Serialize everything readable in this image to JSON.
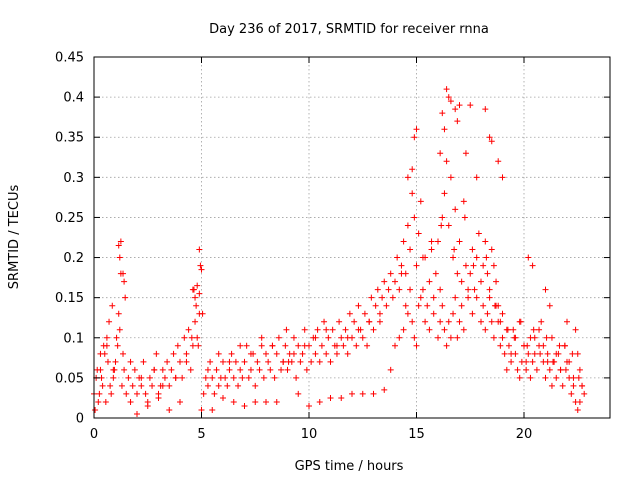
{
  "chart_data": {
    "type": "scatter",
    "title": "Day 236 of 2017, SRMTID for receiver rnna",
    "xlabel": "GPS time / hours",
    "ylabel": "SRMTID / TECUs",
    "xlim": [
      0,
      24
    ],
    "ylim": [
      0,
      0.45
    ],
    "xticks": [
      0,
      5,
      10,
      15,
      20
    ],
    "yticks": [
      0,
      0.05,
      0.1,
      0.15,
      0.2,
      0.25,
      0.3,
      0.35,
      0.4,
      0.45
    ],
    "xtick_labels": [
      "0",
      "5",
      "10",
      "15",
      "20"
    ],
    "ytick_labels": [
      "0",
      "0.05",
      "0.1",
      "0.15",
      "0.2",
      "0.25",
      "0.3",
      "0.35",
      "0.4",
      "0.45"
    ],
    "grid": true,
    "marker": "plus",
    "color": "#ff0000",
    "series": [
      {
        "name": "SRMTID",
        "x": [
          0.0,
          0.1,
          0.2,
          0.3,
          0.4,
          0.5,
          0.6,
          0.7,
          0.8,
          0.9,
          1.0,
          1.1,
          1.2,
          1.3,
          1.4,
          1.5,
          1.6,
          1.7,
          1.8,
          1.9,
          2.0,
          2.1,
          2.2,
          2.3,
          2.4,
          2.5,
          2.6,
          2.7,
          2.8,
          2.9,
          3.0,
          3.1,
          3.2,
          3.3,
          3.4,
          3.5,
          3.6,
          3.7,
          3.8,
          3.9,
          4.0,
          4.1,
          4.2,
          4.3,
          4.4,
          4.5,
          4.6,
          4.7,
          4.8,
          4.9,
          5.0,
          5.1,
          5.2,
          5.3,
          5.4,
          5.5,
          5.6,
          5.7,
          5.8,
          5.9,
          6.0,
          6.1,
          6.2,
          6.3,
          6.4,
          6.5,
          6.6,
          6.7,
          6.8,
          6.9,
          7.0,
          7.1,
          7.2,
          7.3,
          7.4,
          7.5,
          7.6,
          7.7,
          7.8,
          7.9,
          8.0,
          8.1,
          8.2,
          8.3,
          8.4,
          8.5,
          8.6,
          8.7,
          8.8,
          8.9,
          9.0,
          9.1,
          9.2,
          9.3,
          9.4,
          9.5,
          9.6,
          9.7,
          9.8,
          9.9,
          10.0,
          10.1,
          10.2,
          10.3,
          10.4,
          10.5,
          10.6,
          10.7,
          10.8,
          10.9,
          11.0,
          11.1,
          11.2,
          11.3,
          11.4,
          11.5,
          11.6,
          11.7,
          11.8,
          11.9,
          12.0,
          12.1,
          12.2,
          12.3,
          12.4,
          12.5,
          12.6,
          12.7,
          12.8,
          12.9,
          13.0,
          13.1,
          13.2,
          13.3,
          13.4,
          13.5,
          13.6,
          13.7,
          13.8,
          13.9,
          14.0,
          14.1,
          14.2,
          14.3,
          14.4,
          14.5,
          14.6,
          14.7,
          14.8,
          14.9,
          15.0,
          15.1,
          15.2,
          15.3,
          15.4,
          15.5,
          15.6,
          15.7,
          15.8,
          15.9,
          16.0,
          16.1,
          16.2,
          16.3,
          16.4,
          16.5,
          16.6,
          16.7,
          16.8,
          16.9,
          17.0,
          17.1,
          17.2,
          17.3,
          17.4,
          17.5,
          17.6,
          17.7,
          17.8,
          17.9,
          18.0,
          18.1,
          18.2,
          18.3,
          18.4,
          18.5,
          18.6,
          18.7,
          18.8,
          18.9,
          19.0,
          19.1,
          19.2,
          19.3,
          19.4,
          19.5,
          19.6,
          19.7,
          19.8,
          19.9,
          20.0,
          20.1,
          20.2,
          20.3,
          20.4,
          20.5,
          20.6,
          20.7,
          20.8,
          20.9,
          21.0,
          21.1,
          21.2,
          21.3,
          21.4,
          21.5,
          21.6,
          21.7,
          21.8,
          21.9,
          22.0,
          22.1,
          22.2,
          22.3,
          22.4,
          22.5,
          22.6,
          22.7,
          0.05,
          0.15,
          0.25,
          0.35,
          0.45,
          0.55,
          0.65,
          0.75,
          0.85,
          0.95,
          1.05,
          1.15,
          1.25,
          1.35,
          1.45,
          4.55,
          4.65,
          4.75,
          4.85,
          4.95,
          5.05,
          8.95,
          9.05,
          13.8,
          14.0,
          14.2,
          14.4,
          14.5,
          14.6,
          14.7,
          14.8,
          14.9,
          15.0,
          15.1,
          15.2,
          15.4,
          15.6,
          15.8,
          16.0,
          16.1,
          16.2,
          16.3,
          16.4,
          16.5,
          16.6,
          16.7,
          16.8,
          16.9,
          17.0,
          17.1,
          17.2,
          17.4,
          17.6,
          17.8,
          18.0,
          18.1,
          18.2,
          18.3,
          18.4,
          18.5,
          18.6,
          18.7,
          18.8,
          18.9,
          19.0,
          19.2,
          19.4,
          19.6,
          19.8,
          20.0,
          20.1,
          20.3,
          20.5,
          20.7,
          20.9,
          21.1,
          21.3,
          21.5,
          21.7,
          21.9,
          22.1,
          22.3,
          22.5,
          22.6,
          22.7,
          22.8,
          1.15,
          1.25,
          1.35,
          1.2,
          1.4,
          4.6,
          4.7,
          4.8,
          4.9,
          5.0,
          4.9,
          16.4,
          16.6,
          16.8,
          16.9,
          17.0,
          16.5,
          16.3,
          17.5,
          18.2,
          18.4,
          18.5,
          16.2,
          16.1,
          15.0,
          14.9,
          14.8,
          14.6,
          17.3,
          17.8,
          18.8,
          19.0,
          20.2,
          20.4,
          21.0,
          21.2,
          22.0,
          22.4,
          3.0,
          6.0,
          7.5,
          9.5,
          11.0,
          12.0,
          13.0,
          2.0,
          2.5,
          3.5,
          4.0,
          5.5,
          6.5,
          7.0,
          8.0,
          8.5,
          10.0,
          10.5,
          11.5,
          12.5,
          13.5,
          0.3,
          0.6,
          0.9,
          1.7,
          2.2,
          2.8,
          3.2,
          3.8,
          4.3,
          5.3,
          5.8,
          6.3,
          6.8,
          7.3,
          7.8,
          8.3,
          8.8,
          9.3,
          9.8,
          10.3,
          10.8,
          11.3,
          11.8,
          12.3,
          12.8,
          13.3,
          14.3,
          15.3,
          15.7,
          16.15,
          16.75,
          17.25,
          17.65,
          18.25,
          18.65,
          19.25,
          19.55,
          19.85,
          20.15,
          20.45,
          20.75,
          21.05,
          21.35,
          21.65,
          21.95,
          22.25,
          22.55
        ],
        "y": [
          0.03,
          0.05,
          0.02,
          0.06,
          0.04,
          0.08,
          0.1,
          0.12,
          0.03,
          0.05,
          0.07,
          0.09,
          0.11,
          0.04,
          0.06,
          0.03,
          0.05,
          0.02,
          0.04,
          0.06,
          0.03,
          0.05,
          0.04,
          0.07,
          0.03,
          0.02,
          0.05,
          0.04,
          0.06,
          0.08,
          0.03,
          0.04,
          0.06,
          0.05,
          0.07,
          0.04,
          0.06,
          0.08,
          0.05,
          0.09,
          0.07,
          0.05,
          0.1,
          0.08,
          0.11,
          0.06,
          0.09,
          0.12,
          0.1,
          0.13,
          0.01,
          0.03,
          0.05,
          0.04,
          0.07,
          0.05,
          0.03,
          0.06,
          0.04,
          0.05,
          0.07,
          0.05,
          0.04,
          0.06,
          0.08,
          0.05,
          0.07,
          0.04,
          0.06,
          0.05,
          0.07,
          0.09,
          0.05,
          0.06,
          0.08,
          0.04,
          0.07,
          0.06,
          0.09,
          0.05,
          0.08,
          0.07,
          0.06,
          0.09,
          0.05,
          0.08,
          0.1,
          0.06,
          0.07,
          0.09,
          0.06,
          0.08,
          0.07,
          0.1,
          0.05,
          0.09,
          0.07,
          0.08,
          0.11,
          0.06,
          0.09,
          0.07,
          0.1,
          0.08,
          0.11,
          0.07,
          0.09,
          0.12,
          0.08,
          0.1,
          0.07,
          0.11,
          0.09,
          0.08,
          0.12,
          0.1,
          0.09,
          0.11,
          0.08,
          0.13,
          0.1,
          0.12,
          0.09,
          0.14,
          0.11,
          0.1,
          0.13,
          0.09,
          0.12,
          0.15,
          0.11,
          0.14,
          0.16,
          0.12,
          0.15,
          0.17,
          0.14,
          0.16,
          0.18,
          0.15,
          0.17,
          0.2,
          0.16,
          0.19,
          0.22,
          0.18,
          0.24,
          0.21,
          0.28,
          0.25,
          0.19,
          0.23,
          0.27,
          0.16,
          0.2,
          0.14,
          0.17,
          0.21,
          0.15,
          0.18,
          0.22,
          0.16,
          0.25,
          0.28,
          0.32,
          0.24,
          0.3,
          0.2,
          0.26,
          0.18,
          0.22,
          0.17,
          0.27,
          0.19,
          0.15,
          0.18,
          0.21,
          0.16,
          0.2,
          0.23,
          0.17,
          0.19,
          0.22,
          0.18,
          0.16,
          0.21,
          0.19,
          0.17,
          0.14,
          0.12,
          0.1,
          0.08,
          0.06,
          0.09,
          0.07,
          0.11,
          0.08,
          0.06,
          0.05,
          0.07,
          0.09,
          0.06,
          0.08,
          0.05,
          0.07,
          0.1,
          0.06,
          0.09,
          0.12,
          0.07,
          0.05,
          0.08,
          0.06,
          0.04,
          0.07,
          0.05,
          0.08,
          0.06,
          0.04,
          0.09,
          0.07,
          0.05,
          0.03,
          0.04,
          0.02,
          0.01,
          0.02,
          0.04,
          0.01,
          0.06,
          0.03,
          0.05,
          0.09,
          0.02,
          0.07,
          0.04,
          0.14,
          0.06,
          0.1,
          0.13,
          0.18,
          0.08,
          0.15,
          0.1,
          0.16,
          0.14,
          0.09,
          0.19,
          0.13,
          0.11,
          0.07,
          0.06,
          0.09,
          0.1,
          0.11,
          0.14,
          0.13,
          0.16,
          0.12,
          0.1,
          0.09,
          0.14,
          0.15,
          0.12,
          0.11,
          0.13,
          0.1,
          0.12,
          0.14,
          0.11,
          0.09,
          0.12,
          0.1,
          0.13,
          0.15,
          0.1,
          0.12,
          0.14,
          0.11,
          0.16,
          0.13,
          0.15,
          0.12,
          0.14,
          0.11,
          0.13,
          0.15,
          0.12,
          0.1,
          0.14,
          0.12,
          0.09,
          0.13,
          0.11,
          0.08,
          0.1,
          0.12,
          0.09,
          0.07,
          0.1,
          0.08,
          0.11,
          0.09,
          0.07,
          0.1,
          0.08,
          0.06,
          0.09,
          0.07,
          0.05,
          0.08,
          0.06,
          0.04,
          0.03,
          0.215,
          0.22,
          0.18,
          0.2,
          0.17,
          0.16,
          0.15,
          0.165,
          0.155,
          0.185,
          0.21,
          0.41,
          0.395,
          0.385,
          0.37,
          0.39,
          0.4,
          0.36,
          0.39,
          0.385,
          0.35,
          0.345,
          0.38,
          0.33,
          0.36,
          0.35,
          0.31,
          0.3,
          0.33,
          0.3,
          0.32,
          0.3,
          0.2,
          0.19,
          0.16,
          0.14,
          0.12,
          0.11,
          0.025,
          0.025,
          0.02,
          0.03,
          0.025,
          0.03,
          0.03,
          0.005,
          0.015,
          0.01,
          0.02,
          0.01,
          0.02,
          0.015,
          0.02,
          0.02,
          0.015,
          0.02,
          0.025,
          0.03,
          0.035,
          0.08,
          0.09,
          0.06,
          0.07,
          0.05,
          0.06,
          0.04,
          0.05,
          0.07,
          0.06,
          0.08,
          0.07,
          0.09,
          0.08,
          0.1,
          0.09,
          0.07,
          0.08,
          0.09,
          0.1,
          0.11,
          0.09,
          0.1,
          0.11,
          0.12,
          0.13,
          0.18,
          0.2,
          0.22,
          0.24,
          0.21,
          0.25,
          0.19,
          0.2,
          0.14,
          0.11,
          0.1,
          0.12,
          0.09,
          0.11,
          0.08,
          0.1,
          0.07,
          0.09,
          0.06,
          0.08,
          0.05
        ]
      }
    ]
  }
}
